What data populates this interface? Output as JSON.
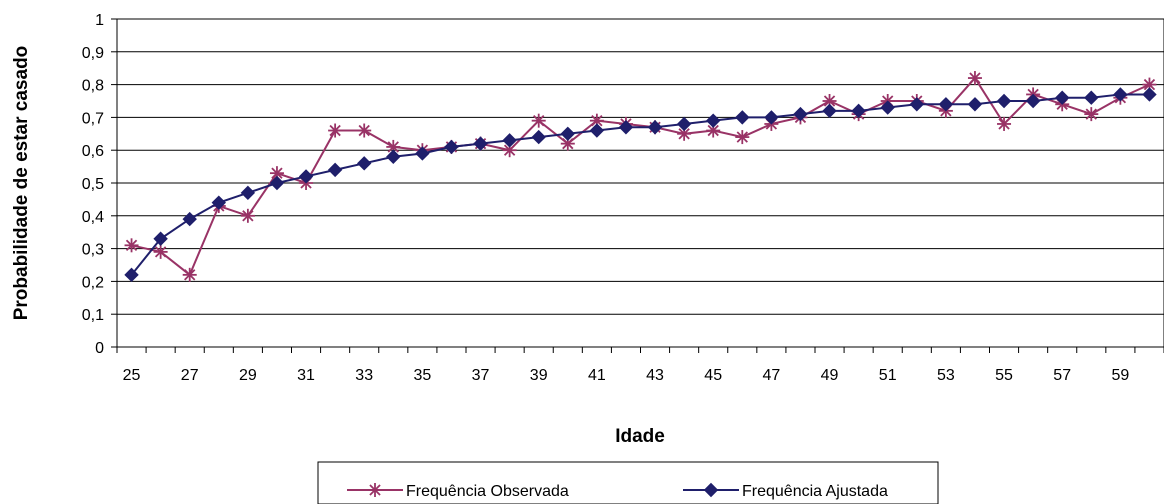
{
  "chart_data": {
    "type": "line",
    "xlabel": "Idade",
    "ylabel": "Probabilidade de estar casado",
    "ylim": [
      0,
      1
    ],
    "yticks": [
      "0",
      "0,1",
      "0,2",
      "0,3",
      "0,4",
      "0,5",
      "0,6",
      "0,7",
      "0,8",
      "0,9",
      "1"
    ],
    "x": [
      25,
      26,
      27,
      28,
      29,
      30,
      31,
      32,
      33,
      34,
      35,
      36,
      37,
      38,
      39,
      40,
      41,
      42,
      43,
      44,
      45,
      46,
      47,
      48,
      49,
      50,
      51,
      52,
      53,
      54,
      55,
      56,
      57,
      58,
      59,
      60
    ],
    "xtick_labels": [
      "25",
      "27",
      "29",
      "31",
      "33",
      "35",
      "37",
      "39",
      "41",
      "43",
      "45",
      "47",
      "49",
      "51",
      "53",
      "55",
      "57",
      "59"
    ],
    "grid": "horizontal",
    "legend_position": "bottom",
    "series": [
      {
        "name": "Frequência Observada",
        "color": "#993366",
        "marker": "star",
        "values": [
          0.31,
          0.29,
          0.22,
          0.43,
          0.4,
          0.53,
          0.5,
          0.66,
          0.66,
          0.61,
          0.6,
          0.61,
          0.62,
          0.6,
          0.69,
          0.62,
          0.69,
          0.68,
          0.67,
          0.65,
          0.66,
          0.64,
          0.68,
          0.7,
          0.75,
          0.71,
          0.75,
          0.75,
          0.72,
          0.82,
          0.68,
          0.77,
          0.74,
          0.71,
          0.76,
          0.8
        ]
      },
      {
        "name": "Frequência Ajustada",
        "color": "#1f1f6b",
        "marker": "diamond",
        "values": [
          0.22,
          0.33,
          0.39,
          0.44,
          0.47,
          0.5,
          0.52,
          0.54,
          0.56,
          0.58,
          0.59,
          0.61,
          0.62,
          0.63,
          0.64,
          0.65,
          0.66,
          0.67,
          0.67,
          0.68,
          0.69,
          0.7,
          0.7,
          0.71,
          0.72,
          0.72,
          0.73,
          0.74,
          0.74,
          0.74,
          0.75,
          0.75,
          0.76,
          0.76,
          0.77,
          0.77
        ]
      }
    ]
  }
}
